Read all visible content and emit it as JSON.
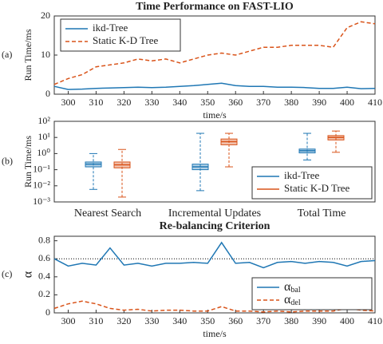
{
  "chart_data": [
    {
      "type": "line",
      "panel_label": "(a)",
      "title": "Time Performance on FAST-LIO",
      "ylabel": "Run Time/ms",
      "xlabel": "time/s",
      "x": [
        295,
        300,
        305,
        310,
        315,
        320,
        325,
        330,
        335,
        340,
        345,
        350,
        355,
        360,
        365,
        370,
        375,
        380,
        385,
        390,
        395,
        400,
        405,
        410
      ],
      "series": [
        {
          "name": "ikd-Tree",
          "color": "#1f77b4",
          "style": "solid",
          "values": [
            2,
            1.2,
            1.3,
            1.5,
            1.6,
            1.7,
            1.8,
            1.7,
            1.8,
            2,
            2.2,
            2.5,
            2.8,
            2.2,
            2,
            2,
            1.8,
            1.8,
            1.7,
            1.5,
            1.5,
            1.8,
            1.4,
            1.5
          ]
        },
        {
          "name": "Static K-D Tree",
          "color": "#d95319",
          "style": "dashed",
          "values": [
            2.5,
            4,
            5,
            7,
            7.5,
            8,
            9,
            8.5,
            9,
            8,
            9,
            10,
            10.5,
            10,
            11,
            12,
            12,
            12.5,
            12.5,
            12.5,
            12,
            17,
            18.5,
            18
          ]
        }
      ],
      "xlim": [
        295,
        410
      ],
      "xticks": [
        300,
        310,
        320,
        330,
        340,
        350,
        360,
        370,
        380,
        390,
        400,
        410
      ],
      "ylim": [
        0,
        20
      ],
      "yticks": [
        0,
        10,
        20
      ],
      "legend": "upper left"
    },
    {
      "type": "box",
      "panel_label": "(b)",
      "ylabel": "Run Time/ms",
      "categories": [
        "Nearest Search",
        "Incremental Updates",
        "Total Time"
      ],
      "series": [
        {
          "name": "ikd-Tree",
          "color": "#1f77b4",
          "min": [
            0.006,
            0.005,
            0.4
          ],
          "q1": [
            0.15,
            0.1,
            1.1
          ],
          "median": [
            0.22,
            0.15,
            1.5
          ],
          "q3": [
            0.3,
            0.22,
            1.9
          ],
          "max": [
            1,
            18,
            18
          ]
        },
        {
          "name": "Static K-D Tree",
          "color": "#d95319",
          "min": [
            0.002,
            0.15,
            1.2
          ],
          "q1": [
            0.13,
            3.5,
            7
          ],
          "median": [
            0.2,
            5.5,
            10
          ],
          "q3": [
            0.3,
            8,
            13
          ],
          "max": [
            1.8,
            18,
            25
          ]
        }
      ],
      "log_scale": true,
      "ylim": [
        0.001,
        100
      ],
      "yticks": [
        {
          "value": 0.001,
          "label": "10⁻³"
        },
        {
          "value": 0.01,
          "label": "10⁻²"
        },
        {
          "value": 0.1,
          "label": "10⁻¹"
        },
        {
          "value": 1,
          "label": "10⁰"
        },
        {
          "value": 10,
          "label": "10¹"
        },
        {
          "value": 100,
          "label": "10²"
        }
      ],
      "legend": "lower right"
    },
    {
      "type": "line",
      "panel_label": "(c)",
      "title": "Re-balancing Criterion",
      "ylabel": "α",
      "xlabel": "time/s",
      "x": [
        295,
        300,
        305,
        310,
        315,
        320,
        325,
        330,
        335,
        340,
        345,
        350,
        355,
        360,
        365,
        370,
        375,
        380,
        385,
        390,
        395,
        400,
        405,
        410
      ],
      "series": [
        {
          "name": "αbal",
          "color": "#1f77b4",
          "style": "solid",
          "values": [
            0.6,
            0.52,
            0.55,
            0.53,
            0.72,
            0.53,
            0.55,
            0.52,
            0.55,
            0.55,
            0.56,
            0.55,
            0.78,
            0.55,
            0.56,
            0.5,
            0.56,
            0.57,
            0.55,
            0.57,
            0.56,
            0.52,
            0.57,
            0.58
          ]
        },
        {
          "name": "αdel",
          "color": "#d95319",
          "style": "dashed",
          "values": [
            0.05,
            0.1,
            0.13,
            0.1,
            0.05,
            0.03,
            0.04,
            0.02,
            0.03,
            0.03,
            0.02,
            0.02,
            0.07,
            0.02,
            0.02,
            0.01,
            0.02,
            0.01,
            0.02,
            0.02,
            0.02,
            0.05,
            0.03,
            0.02
          ]
        }
      ],
      "reference_line": 0.6,
      "xlim": [
        295,
        410
      ],
      "xticks": [
        300,
        310,
        320,
        330,
        340,
        350,
        360,
        370,
        380,
        390,
        400,
        410
      ],
      "ylim": [
        0,
        0.85
      ],
      "yticks": [
        0,
        0.2,
        0.4,
        0.6,
        0.8
      ],
      "legend": "lower right"
    }
  ]
}
